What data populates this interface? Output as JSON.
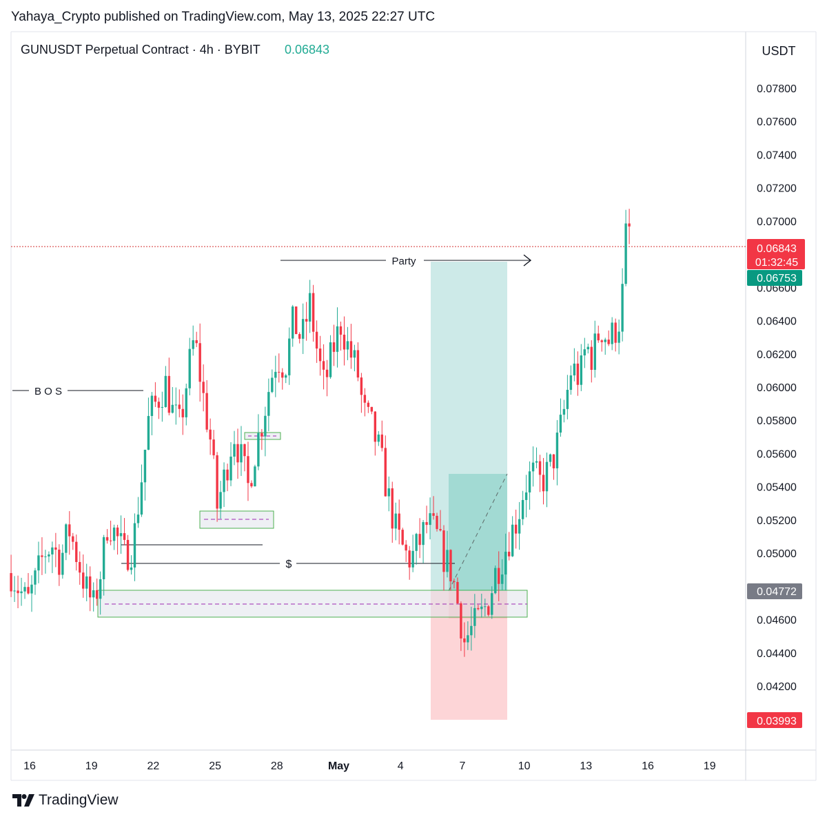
{
  "header": {
    "publisher": "Yahaya_Crypto published on TradingView.com, May 13, 2025 22:27 UTC"
  },
  "legend": {
    "symbol": "GUNUSDT Perpetual Contract · 4h · BYBIT",
    "last_price": "0.06843"
  },
  "price_axis": {
    "unit": "USDT",
    "ticks": [
      "0.07800",
      "0.07600",
      "0.07400",
      "0.07200",
      "0.07000",
      "0.06600",
      "0.06400",
      "0.06200",
      "0.06000",
      "0.05800",
      "0.05600",
      "0.05400",
      "0.05200",
      "0.05000",
      "0.04600",
      "0.04400",
      "0.04200"
    ],
    "labels": {
      "current_price": "0.06843",
      "countdown": "01:32:45",
      "target": "0.06753",
      "entry": "0.04772",
      "stop": "0.03993"
    }
  },
  "time_axis": {
    "ticks": [
      "16",
      "19",
      "22",
      "25",
      "28",
      "May",
      "4",
      "7",
      "10",
      "13",
      "16",
      "19"
    ]
  },
  "annotations": {
    "bos": "B O S",
    "liquidity": "$",
    "party": "Party"
  },
  "colors": {
    "up": "#22ab94",
    "down": "#f23645",
    "target_zone": "#b2dfdb",
    "stop_zone": "#fccbcd",
    "current_price_line": "#d32f2f"
  },
  "footer": {
    "brand": "TradingView"
  },
  "chart_data": {
    "type": "candlestick",
    "timeframe": "4h",
    "last_price": 0.06843,
    "ylim": [
      0.0385,
      0.08
    ],
    "x_range": [
      "Apr 15",
      "May 20"
    ],
    "position": {
      "type": "long",
      "entry": 0.04772,
      "target": 0.06753,
      "stop": 0.03993
    },
    "x_ticks": [
      "16",
      "19",
      "22",
      "25",
      "28",
      "May",
      "4",
      "7",
      "10",
      "13",
      "16",
      "19"
    ],
    "close_path": [
      [
        15.1,
        0.0488
      ],
      [
        15.5,
        0.0478
      ],
      [
        15.9,
        0.047
      ],
      [
        16.3,
        0.0484
      ],
      [
        16.7,
        0.05
      ],
      [
        17.1,
        0.0505
      ],
      [
        17.5,
        0.0495
      ],
      [
        17.9,
        0.0515
      ],
      [
        18.3,
        0.0498
      ],
      [
        18.7,
        0.048
      ],
      [
        19.1,
        0.0468
      ],
      [
        19.5,
        0.0492
      ],
      [
        19.8,
        0.052
      ],
      [
        20.2,
        0.051
      ],
      [
        20.6,
        0.0499
      ],
      [
        21.0,
        0.0503
      ],
      [
        21.4,
        0.0542
      ],
      [
        21.8,
        0.0583
      ],
      [
        22.2,
        0.0592
      ],
      [
        22.6,
        0.0602
      ],
      [
        22.9,
        0.0586
      ],
      [
        23.3,
        0.0576
      ],
      [
        23.7,
        0.061
      ],
      [
        24.0,
        0.063
      ],
      [
        24.4,
        0.0596
      ],
      [
        24.8,
        0.0566
      ],
      [
        25.1,
        0.0528
      ],
      [
        25.5,
        0.0548
      ],
      [
        25.9,
        0.0573
      ],
      [
        26.3,
        0.0555
      ],
      [
        26.6,
        0.054
      ],
      [
        27.0,
        0.0565
      ],
      [
        27.3,
        0.058
      ],
      [
        27.7,
        0.0605
      ],
      [
        28.0,
        0.0618
      ],
      [
        28.4,
        0.0612
      ],
      [
        28.8,
        0.064
      ],
      [
        29.2,
        0.0628
      ],
      [
        29.6,
        0.065
      ],
      [
        30.0,
        0.0618
      ],
      [
        30.3,
        0.06
      ],
      [
        30.7,
        0.0622
      ],
      [
        31.1,
        0.0638
      ],
      [
        31.5,
        0.0622
      ],
      [
        31.9,
        0.061
      ],
      [
        32.2,
        0.0585
      ],
      [
        32.6,
        0.0576
      ],
      [
        33.0,
        0.056
      ],
      [
        33.4,
        0.0534
      ],
      [
        33.8,
        0.0512
      ],
      [
        34.2,
        0.05
      ],
      [
        34.5,
        0.0496
      ],
      [
        34.9,
        0.0506
      ],
      [
        35.3,
        0.0518
      ],
      [
        35.7,
        0.0512
      ],
      [
        36.1,
        0.0498
      ],
      [
        36.5,
        0.0488
      ],
      [
        36.8,
        0.0468
      ],
      [
        37.1,
        0.0447
      ],
      [
        37.5,
        0.0455
      ],
      [
        37.9,
        0.0462
      ],
      [
        38.3,
        0.0472
      ],
      [
        38.6,
        0.0488
      ],
      [
        38.9,
        0.0496
      ],
      [
        39.3,
        0.051
      ],
      [
        39.7,
        0.0522
      ],
      [
        40.0,
        0.054
      ],
      [
        40.4,
        0.0548
      ],
      [
        40.8,
        0.0542
      ],
      [
        41.2,
        0.055
      ],
      [
        41.5,
        0.056
      ],
      [
        41.9,
        0.0583
      ],
      [
        42.3,
        0.0612
      ],
      [
        42.7,
        0.0605
      ],
      [
        43.0,
        0.0625
      ],
      [
        43.3,
        0.0618
      ],
      [
        43.7,
        0.0636
      ],
      [
        44.1,
        0.0628
      ],
      [
        44.4,
        0.0634
      ],
      [
        44.7,
        0.0643
      ],
      [
        45.0,
        0.0704
      ],
      [
        45.2,
        0.0684
      ]
    ]
  }
}
